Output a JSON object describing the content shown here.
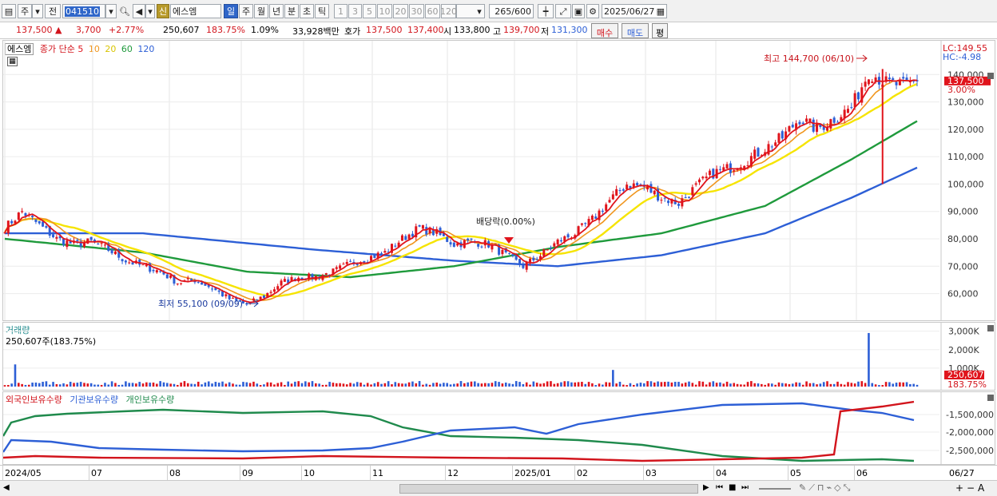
{
  "toolbar": {
    "market": "주",
    "prefix": "전",
    "code": "041510",
    "credit_badge": "신",
    "name": "에스엠",
    "periods": [
      "일",
      "주",
      "월",
      "년",
      "분",
      "초",
      "틱"
    ],
    "active_period": "일",
    "intervals": [
      "1",
      "3",
      "5",
      "10",
      "20",
      "30",
      "60",
      "120"
    ],
    "count": "265",
    "count_total": "/600",
    "date": "2025/06/27"
  },
  "quote": {
    "price": "137,500 ▲",
    "change": "3,700",
    "change_pct": "+2.77%",
    "volume": "250,607",
    "volume_ratio": "183.75%",
    "turnover": "1.09%",
    "amount": "33,928백만",
    "ask_label": "호가",
    "ask": "137,500",
    "bid": "137,400",
    "open_label": "시",
    "open": "133,800",
    "high_label": "고",
    "high": "139,700",
    "low_label": "저",
    "low": "131,300",
    "buy": "매수",
    "sell": "매도",
    "eval": "평"
  },
  "price_pane": {
    "name_box": "에스엠",
    "ma_label": "종가 단순",
    "ma_periods": [
      "5",
      "10",
      "20",
      "60",
      "120"
    ],
    "ma_colors": [
      "#e0141c",
      "#f0961e",
      "#f6e400",
      "#1f9a3c",
      "#2d5fd6"
    ],
    "lc": "LC:149.55",
    "hc": "HC:-4.98",
    "last_price": "137,500",
    "last_pct": "3.00%",
    "y_ticks": [
      "140,000",
      "130,000",
      "120,000",
      "110,000",
      "100,000",
      "90,000",
      "80,000",
      "70,000",
      "60,000"
    ],
    "annotation_high": "최고 144,700 (06/10)",
    "annotation_low": "최저 55,100 (09/09)",
    "annotation_div": "배당락(0.00%)"
  },
  "volume_pane": {
    "title": "거래량",
    "value_text": "250,607주(183.75%)",
    "y_ticks": [
      "3,000K",
      "2,000K",
      "1,000K"
    ],
    "last_volume": "250,607",
    "last_ratio": "183.75%"
  },
  "holding_pane": {
    "series": [
      "외국인보유수량",
      "기관보유수량",
      "개인보유수량"
    ],
    "series_colors": [
      "#d2141c",
      "#2d5fd6",
      "#1f8a4c"
    ],
    "y_ticks": [
      "-1,500,000",
      "-2,000,000",
      "-2,500,000"
    ]
  },
  "x_axis": {
    "labels": [
      "2024/05",
      "07",
      "08",
      "09",
      "10",
      "11",
      "12",
      "2025/01",
      "02",
      "03",
      "04",
      "05",
      "06"
    ],
    "last_label": "06/27"
  },
  "chart_data": {
    "type": "candlestick",
    "title": "",
    "ylim": [
      52000,
      150000
    ],
    "x_start": "2024/05",
    "x_end": "2025/06/27",
    "close_path": [
      [
        0,
        84000
      ],
      [
        5,
        90000
      ],
      [
        10,
        85000
      ],
      [
        15,
        80000
      ],
      [
        20,
        78000
      ],
      [
        25,
        79000
      ],
      [
        30,
        76000
      ],
      [
        35,
        72000
      ],
      [
        40,
        70000
      ],
      [
        45,
        68000
      ],
      [
        50,
        64000
      ],
      [
        55,
        65000
      ],
      [
        60,
        62000
      ],
      [
        65,
        58000
      ],
      [
        70,
        56000
      ],
      [
        75,
        59000
      ],
      [
        80,
        64000
      ],
      [
        85,
        66000
      ],
      [
        90,
        66000
      ],
      [
        95,
        68000
      ],
      [
        100,
        71000
      ],
      [
        105,
        73000
      ],
      [
        110,
        75000
      ],
      [
        115,
        80000
      ],
      [
        120,
        84000
      ],
      [
        125,
        82000
      ],
      [
        130,
        78000
      ],
      [
        135,
        79000
      ],
      [
        140,
        78000
      ],
      [
        145,
        74000
      ],
      [
        150,
        70000
      ],
      [
        155,
        74000
      ],
      [
        160,
        79000
      ],
      [
        165,
        82000
      ],
      [
        170,
        87000
      ],
      [
        175,
        94000
      ],
      [
        180,
        100000
      ],
      [
        185,
        99000
      ],
      [
        190,
        95000
      ],
      [
        195,
        93000
      ],
      [
        200,
        99000
      ],
      [
        205,
        104000
      ],
      [
        210,
        106000
      ],
      [
        215,
        109000
      ],
      [
        220,
        113000
      ],
      [
        225,
        117000
      ],
      [
        230,
        124000
      ],
      [
        235,
        120000
      ],
      [
        240,
        124000
      ],
      [
        245,
        128000
      ],
      [
        250,
        141000
      ],
      [
        255,
        137000
      ],
      [
        260,
        136000
      ],
      [
        264,
        137500
      ]
    ],
    "ma60_path": [
      [
        0,
        80000
      ],
      [
        40,
        75000
      ],
      [
        70,
        68000
      ],
      [
        100,
        66000
      ],
      [
        130,
        70000
      ],
      [
        160,
        77000
      ],
      [
        190,
        82000
      ],
      [
        220,
        92000
      ],
      [
        245,
        109000
      ],
      [
        264,
        123000
      ]
    ],
    "ma120_path": [
      [
        0,
        82000
      ],
      [
        40,
        82000
      ],
      [
        90,
        76000
      ],
      [
        130,
        72000
      ],
      [
        160,
        70000
      ],
      [
        190,
        74000
      ],
      [
        220,
        82000
      ],
      [
        245,
        95000
      ],
      [
        264,
        106000
      ]
    ],
    "volume_spikes": [
      {
        "i": 3,
        "value": 1200000
      },
      {
        "i": 176,
        "value": 900000
      },
      {
        "i": 250,
        "value": 2900000
      }
    ]
  }
}
